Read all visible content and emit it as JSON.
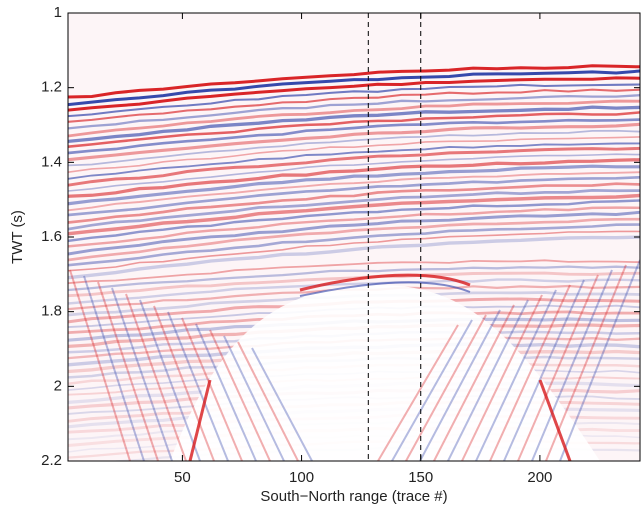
{
  "chart_data": {
    "type": "seismic",
    "xlabel": "South−North range (trace #)",
    "ylabel": "TWT (s)",
    "xlim": [
      2,
      242
    ],
    "xticks": [
      50,
      100,
      150,
      200
    ],
    "ylim": [
      1,
      2.2
    ],
    "yticks": [
      1,
      1.2,
      1.4,
      1.6,
      1.8,
      2,
      2.2
    ],
    "y_inverted": true,
    "vlines": [
      128,
      150
    ],
    "colors": {
      "positive": "#d7191c",
      "negative": "#2b3fa8"
    }
  }
}
